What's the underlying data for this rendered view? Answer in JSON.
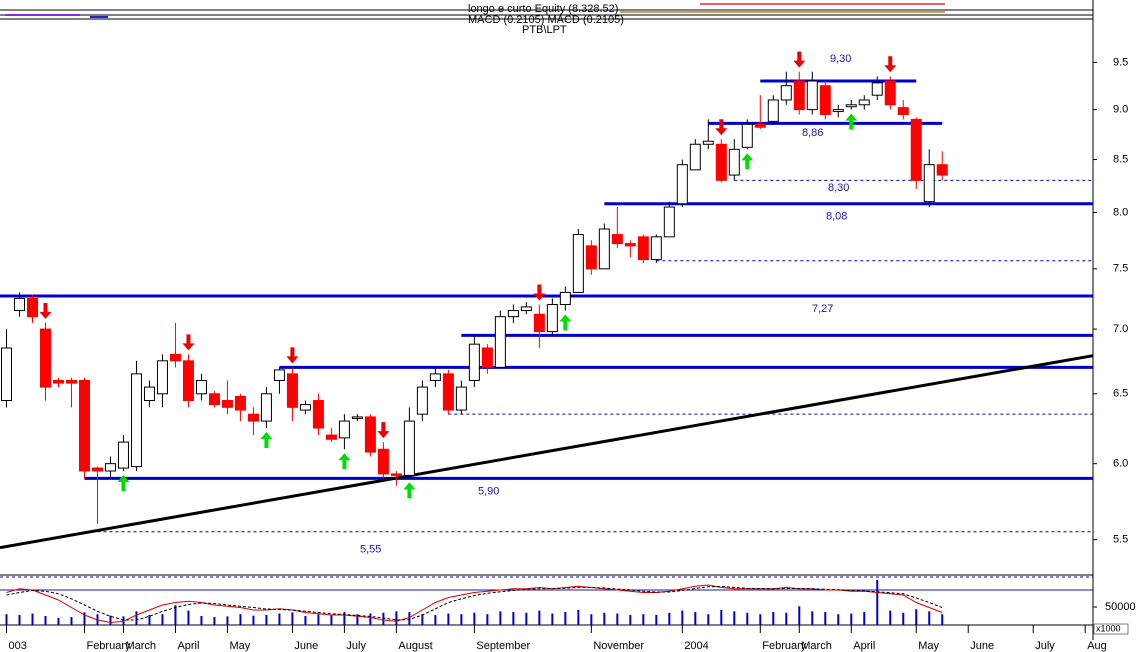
{
  "chart_data": {
    "type": "candlestick",
    "title": "longo e curto Equity (8.328.52)",
    "subtitle": "MACD (0.2105) MACD (0.2105)",
    "annotation": "PTB\\LPT",
    "log_scale": true,
    "xlim": [
      -0.5,
      83.6
    ],
    "ylim": [
      5.3,
      9.95
    ],
    "yticks": [
      9.5,
      {
        "value": 9,
        "label": "9.0"
      },
      8.5,
      {
        "value": 8,
        "label": "8.0"
      },
      7.5,
      {
        "value": 7,
        "label": "7.0"
      },
      6.5,
      {
        "value": 6,
        "label": "6.0"
      },
      5.5
    ],
    "xticks": [
      {
        "value": 0,
        "label": "003"
      },
      {
        "value": 6,
        "label": "February"
      },
      {
        "value": 9,
        "label": "March"
      },
      {
        "value": 13,
        "label": "April"
      },
      {
        "value": 17,
        "label": "May"
      },
      {
        "value": 22,
        "label": "June"
      },
      {
        "value": 26,
        "label": "July"
      },
      {
        "value": 30,
        "label": "August"
      },
      {
        "value": 36,
        "label": "September"
      },
      {
        "value": 45,
        "label": "November"
      },
      {
        "value": 52,
        "label": "2004"
      },
      {
        "value": 58,
        "label": "February"
      },
      {
        "value": 61,
        "label": "March"
      },
      {
        "value": 65,
        "label": "April"
      },
      {
        "value": 70,
        "label": "May"
      },
      {
        "value": 74,
        "label": "June"
      },
      {
        "value": 79,
        "label": "July"
      },
      {
        "value": 83,
        "label": "Aug"
      }
    ],
    "up_color": "#ffffff",
    "down_color": "#ff0000",
    "open": [
      6.45,
      7.15,
      7.25,
      7.0,
      6.6,
      6.6,
      6.6,
      5.97,
      5.95,
      5.97,
      5.98,
      6.45,
      6.5,
      6.8,
      6.75,
      6.5,
      6.5,
      6.45,
      6.48,
      6.35,
      6.3,
      6.6,
      6.65,
      6.38,
      6.45,
      6.2,
      6.18,
      6.32,
      6.33,
      6.1,
      5.93,
      5.92,
      6.35,
      6.6,
      6.65,
      6.38,
      6.6,
      6.85,
      6.7,
      7.1,
      7.15,
      7.12,
      6.98,
      7.2,
      7.3,
      7.7,
      7.5,
      7.8,
      7.72,
      7.78,
      7.58,
      7.78,
      8.08,
      8.4,
      8.65,
      8.65,
      8.35,
      8.62,
      8.85,
      8.88,
      9.1,
      9.3,
      9.0,
      9.25,
      8.98,
      9.03,
      9.05,
      9.15,
      9.3,
      9.02,
      8.9,
      8.1,
      8.45
    ],
    "high": [
      7.0,
      7.3,
      7.28,
      7.05,
      6.62,
      6.62,
      6.62,
      5.98,
      6.05,
      6.2,
      6.75,
      6.6,
      6.8,
      7.05,
      6.8,
      6.65,
      6.52,
      6.6,
      6.5,
      6.4,
      6.55,
      6.7,
      6.7,
      6.45,
      6.5,
      6.25,
      6.35,
      6.35,
      6.35,
      6.15,
      5.95,
      6.4,
      6.6,
      6.7,
      6.68,
      6.6,
      6.95,
      6.88,
      7.15,
      7.2,
      7.22,
      7.2,
      7.25,
      7.35,
      7.85,
      7.75,
      7.9,
      8.05,
      7.75,
      7.8,
      7.8,
      8.1,
      8.5,
      8.7,
      8.9,
      8.7,
      8.7,
      8.9,
      9.15,
      9.15,
      9.4,
      9.4,
      9.4,
      9.3,
      9.05,
      9.1,
      9.15,
      9.35,
      9.35,
      9.1,
      8.92,
      8.6,
      8.58
    ],
    "low": [
      6.4,
      7.1,
      7.05,
      6.45,
      6.55,
      6.4,
      5.9,
      5.6,
      5.9,
      5.95,
      5.95,
      6.4,
      6.4,
      6.7,
      6.4,
      6.45,
      6.4,
      6.35,
      6.3,
      6.2,
      6.25,
      6.5,
      6.3,
      6.35,
      6.2,
      6.15,
      6.1,
      6.3,
      6.05,
      5.9,
      5.85,
      5.9,
      6.3,
      6.55,
      6.35,
      6.35,
      6.55,
      6.65,
      6.7,
      7.05,
      7.12,
      6.85,
      6.95,
      7.15,
      7.3,
      7.45,
      7.5,
      7.68,
      7.6,
      7.55,
      7.55,
      7.78,
      8.05,
      8.4,
      8.6,
      8.28,
      8.3,
      8.6,
      8.8,
      8.85,
      9.05,
      8.95,
      8.95,
      8.9,
      8.92,
      9.0,
      9.0,
      9.1,
      9.0,
      8.9,
      8.22,
      8.05,
      8.3
    ],
    "close": [
      6.85,
      7.25,
      7.1,
      6.55,
      6.58,
      6.58,
      5.95,
      5.95,
      6.0,
      6.15,
      6.65,
      6.55,
      6.75,
      6.75,
      6.45,
      6.6,
      6.42,
      6.4,
      6.38,
      6.3,
      6.5,
      6.68,
      6.4,
      6.42,
      6.25,
      6.17,
      6.3,
      6.33,
      6.08,
      5.93,
      5.92,
      6.3,
      6.55,
      6.65,
      6.38,
      6.55,
      6.88,
      6.7,
      7.1,
      7.15,
      7.18,
      6.98,
      7.2,
      7.3,
      7.8,
      7.5,
      7.85,
      7.72,
      7.7,
      7.58,
      7.78,
      8.05,
      8.45,
      8.65,
      8.68,
      8.3,
      8.6,
      8.85,
      8.82,
      9.1,
      9.25,
      9.0,
      9.3,
      8.95,
      9.0,
      9.05,
      9.1,
      9.28,
      9.05,
      8.95,
      8.3,
      8.45,
      8.35
    ],
    "sell_signals": [
      3,
      14,
      22,
      29,
      41,
      55,
      61,
      68
    ],
    "buy_signals": [
      9,
      20,
      26,
      31,
      43,
      57,
      65
    ],
    "sell_color": "#ee0000",
    "buy_color": "#00dd00",
    "trend_line": {
      "x": [
        -0.5,
        83.6
      ],
      "values": [
        5.45,
        6.79
      ],
      "color": "#000000"
    },
    "levels": [
      {
        "value": 9.3,
        "label": "9,30",
        "from": 58,
        "to": 70,
        "style": "solid"
      },
      {
        "value": 8.86,
        "label": "8,86",
        "from": 54,
        "to": 72,
        "style": "solid"
      },
      {
        "value": 8.3,
        "label": "8,30",
        "from": 56,
        "style": "dashed"
      },
      {
        "value": 8.08,
        "label": "8,08",
        "from": 46,
        "style": "solid"
      },
      {
        "value": 7.57,
        "from": 50,
        "style": "dashed"
      },
      {
        "value": 7.27,
        "label": "7,27",
        "style": "solid"
      },
      {
        "value": 6.95,
        "from": 35,
        "style": "solid"
      },
      {
        "value": 6.7,
        "from": 21,
        "style": "solid"
      },
      {
        "value": 6.35,
        "from": 34,
        "style": "dashed"
      },
      {
        "value": 5.9,
        "label": "5,90",
        "from": 6,
        "style": "solid"
      },
      {
        "value": 5.55,
        "label": "5,55",
        "from": 7,
        "style": "dashed"
      },
      {
        "value": 5.27,
        "style": "dashed"
      }
    ],
    "level_color": "#0000cc",
    "volume": [
      30000,
      28000,
      32000,
      25000,
      20000,
      22000,
      35000,
      30000,
      26000,
      24000,
      38000,
      28000,
      30000,
      55000,
      40000,
      25000,
      22000,
      24000,
      30000,
      26000,
      28000,
      32000,
      35000,
      25000,
      30000,
      28000,
      36000,
      30000,
      32000,
      34000,
      38000,
      36000,
      30000,
      28000,
      32000,
      30000,
      34000,
      30000,
      38000,
      36000,
      34000,
      40000,
      32000,
      36000,
      42000,
      30000,
      34000,
      32000,
      28000,
      30000,
      28000,
      34000,
      40000,
      36000,
      30000,
      42000,
      38000,
      34000,
      30000,
      36000,
      34000,
      52000,
      38000,
      36000,
      30000,
      32000,
      36000,
      125000,
      40000,
      34000,
      44000,
      38000,
      30000
    ],
    "volume_color": "#0000cc",
    "volume_ylim": [
      0,
      139000
    ],
    "volume_yticks": [
      50000
    ],
    "volume_unit": "x1000",
    "macd": [
      0.3,
      0.45,
      0.4,
      0.2,
      0.0,
      -0.3,
      -0.6,
      -0.8,
      -0.9,
      -0.85,
      -0.6,
      -0.4,
      -0.2,
      -0.1,
      -0.05,
      -0.1,
      -0.2,
      -0.25,
      -0.3,
      -0.4,
      -0.4,
      -0.35,
      -0.4,
      -0.5,
      -0.55,
      -0.6,
      -0.6,
      -0.65,
      -0.7,
      -0.8,
      -0.85,
      -0.7,
      -0.4,
      -0.1,
      0.1,
      0.2,
      0.3,
      0.35,
      0.4,
      0.45,
      0.45,
      0.5,
      0.45,
      0.5,
      0.55,
      0.5,
      0.45,
      0.4,
      0.35,
      0.3,
      0.3,
      0.35,
      0.45,
      0.55,
      0.6,
      0.5,
      0.45,
      0.45,
      0.45,
      0.45,
      0.5,
      0.45,
      0.45,
      0.4,
      0.4,
      0.35,
      0.35,
      0.3,
      0.25,
      0.2,
      -0.1,
      -0.3,
      -0.5
    ],
    "signal": [
      0.2,
      0.3,
      0.38,
      0.35,
      0.25,
      0.05,
      -0.2,
      -0.45,
      -0.65,
      -0.8,
      -0.8,
      -0.65,
      -0.45,
      -0.3,
      -0.18,
      -0.12,
      -0.14,
      -0.2,
      -0.25,
      -0.3,
      -0.36,
      -0.38,
      -0.4,
      -0.45,
      -0.5,
      -0.55,
      -0.58,
      -0.62,
      -0.66,
      -0.72,
      -0.8,
      -0.78,
      -0.6,
      -0.35,
      -0.1,
      0.05,
      0.18,
      0.27,
      0.33,
      0.38,
      0.42,
      0.45,
      0.46,
      0.47,
      0.5,
      0.5,
      0.48,
      0.44,
      0.4,
      0.35,
      0.32,
      0.32,
      0.38,
      0.46,
      0.53,
      0.54,
      0.5,
      0.47,
      0.46,
      0.45,
      0.46,
      0.46,
      0.45,
      0.43,
      0.41,
      0.38,
      0.36,
      0.33,
      0.29,
      0.25,
      0.08,
      -0.1,
      -0.3
    ],
    "macd_color": "#dd0000",
    "signal_color": "#000000",
    "macd_ylim": [
      -1,
      1
    ]
  }
}
